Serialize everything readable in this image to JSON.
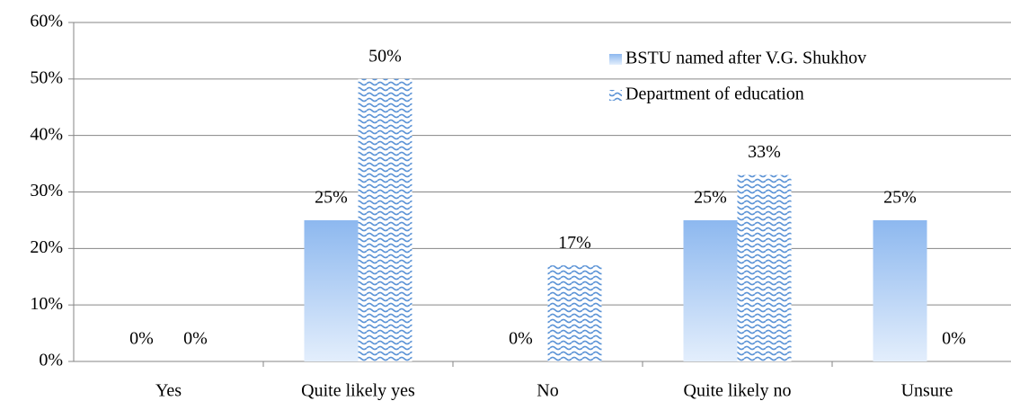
{
  "chart_data": {
    "type": "bar",
    "categories": [
      "Yes",
      "Quite likely yes",
      "No",
      "Quite likely no",
      "Unsure"
    ],
    "series": [
      {
        "name": "BSTU named after V.G. Shukhov",
        "color": "#8db8ef",
        "values": [
          0,
          25,
          0,
          25,
          25
        ],
        "value_labels": [
          "0%",
          "25%",
          "0%",
          "25%",
          "25%"
        ]
      },
      {
        "name": "Department of education",
        "color": "#5b93d6",
        "values": [
          0,
          50,
          17,
          33,
          0
        ],
        "value_labels": [
          "0%",
          "50%",
          "17%",
          "33%",
          "0%"
        ]
      }
    ],
    "ylim": [
      0,
      60
    ],
    "yticks": [
      {
        "value": 0,
        "label": "0%"
      },
      {
        "value": 10,
        "label": "10%"
      },
      {
        "value": 20,
        "label": "20%"
      },
      {
        "value": 30,
        "label": "30%"
      },
      {
        "value": 40,
        "label": "40%"
      },
      {
        "value": 50,
        "label": "50%"
      },
      {
        "value": 60,
        "label": "60%"
      }
    ],
    "grid": true,
    "legend": "upper right"
  }
}
